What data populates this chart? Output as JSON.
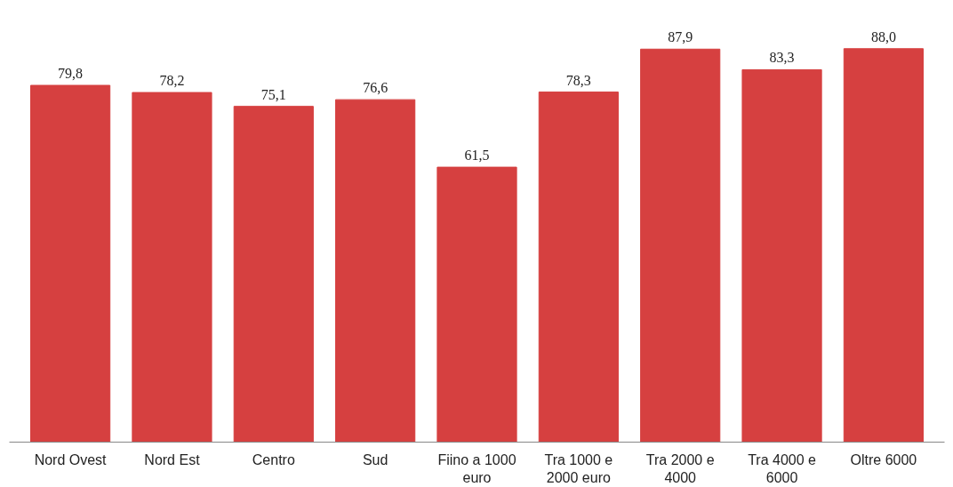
{
  "chart_data": {
    "type": "bar",
    "categories": [
      "Nord Ovest",
      "Nord Est",
      "Centro",
      "Sud",
      "Fiino a 1000 euro",
      "Tra 1000 e 2000 euro",
      "Tra 2000 e 4000",
      "Tra 4000 e 6000",
      "Oltre 6000"
    ],
    "values": [
      79.8,
      78.2,
      75.1,
      76.6,
      61.5,
      78.3,
      87.9,
      83.3,
      88.0
    ],
    "value_labels": [
      "79,8",
      "78,2",
      "75,1",
      "76,6",
      "61,5",
      "78,3",
      "87,9",
      "83,3",
      "88,0"
    ],
    "color": "#d64040",
    "grid": false,
    "tick_labels": "x"
  }
}
